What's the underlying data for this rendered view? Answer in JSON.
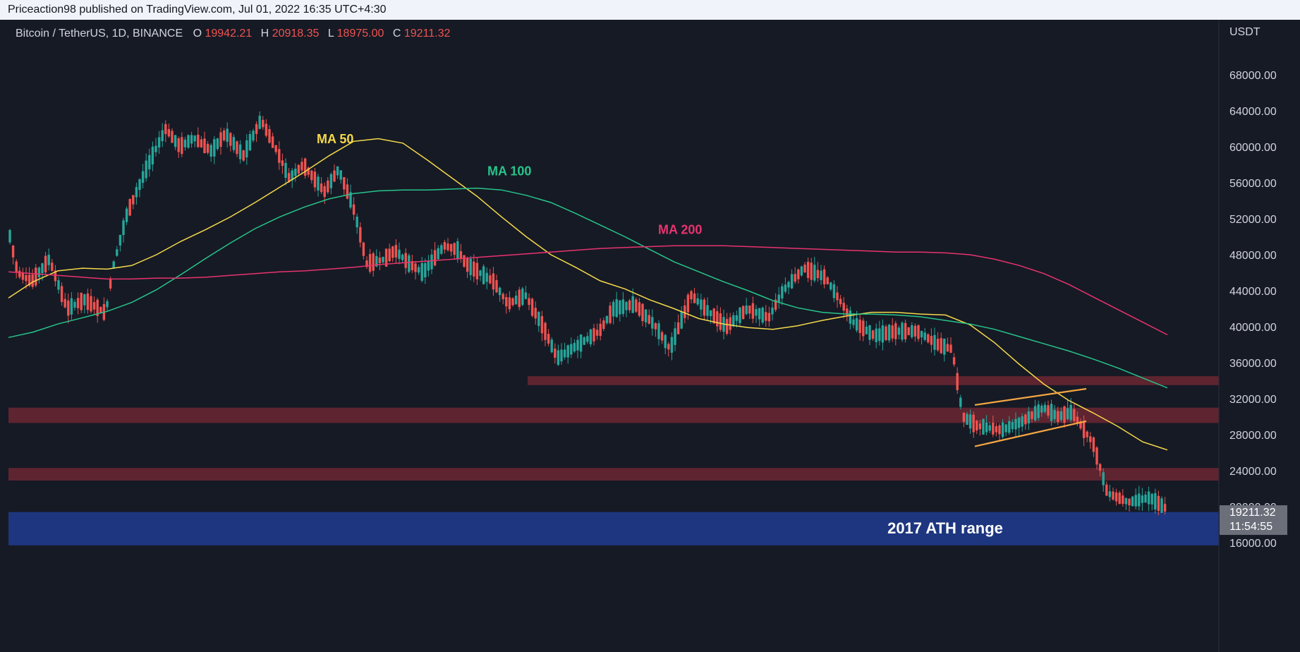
{
  "header": {
    "published": "Priceaction98 published on TradingView.com, Jul 01, 2022 16:35 UTC+4:30"
  },
  "symbol": {
    "name": "Bitcoin / TetherUS, 1D, BINANCE",
    "o_label": "O",
    "o_value": "19942.21",
    "h_label": "H",
    "h_value": "20918.35",
    "l_label": "L",
    "l_value": "18975.00",
    "c_label": "C",
    "c_value": "19211.32"
  },
  "colors": {
    "background": "#161a25",
    "up": "#26a69a",
    "down": "#ef5350",
    "ma50": "#f5d94a",
    "ma100": "#27c48a",
    "ma200": "#e8336e",
    "zone": "#6b2733",
    "ath_zone": "#1e3a8a",
    "channel": "#f5a742"
  },
  "chart_data": {
    "type": "line",
    "y_axis": {
      "unit": "USDT",
      "ticks": [
        16000,
        20000,
        24000,
        28000,
        32000,
        36000,
        40000,
        44000,
        48000,
        52000,
        56000,
        60000,
        64000,
        68000
      ]
    },
    "price_label": {
      "price": "19211.32",
      "countdown": "11:54:55",
      "value": 19211.32
    },
    "series": [
      {
        "name": "MA 50",
        "color_key": "ma50",
        "values": [
          43200,
          45000,
          46200,
          46500,
          46400,
          46800,
          48000,
          49500,
          50800,
          52200,
          53800,
          55500,
          57200,
          59000,
          60600,
          60900,
          60400,
          58500,
          56500,
          54500,
          52200,
          50000,
          48000,
          46600,
          45100,
          44200,
          43000,
          42000,
          40900,
          40300,
          39900,
          39700,
          40100,
          40700,
          41200,
          41600,
          41600,
          41400,
          41300,
          40200,
          38200,
          35800,
          33600,
          31800,
          30400,
          28900,
          27200,
          26300
        ]
      },
      {
        "name": "MA 100",
        "color_key": "ma100",
        "values": [
          38800,
          39400,
          40300,
          41000,
          41700,
          42700,
          44100,
          45800,
          47600,
          49300,
          50900,
          52200,
          53300,
          54200,
          54800,
          55100,
          55200,
          55200,
          55300,
          55400,
          55200,
          54600,
          53800,
          52600,
          51300,
          50000,
          48600,
          47200,
          46100,
          45000,
          44000,
          42900,
          42100,
          41600,
          41400,
          41400,
          41300,
          41100,
          40700,
          40300,
          39700,
          38900,
          38100,
          37300,
          36400,
          35400,
          34300,
          33200
        ]
      },
      {
        "name": "MA 200",
        "color_key": "ma200",
        "values": [
          46100,
          45900,
          45700,
          45500,
          45300,
          45300,
          45400,
          45400,
          45500,
          45700,
          45900,
          46100,
          46200,
          46400,
          46600,
          46900,
          47100,
          47300,
          47500,
          47700,
          47900,
          48100,
          48300,
          48500,
          48700,
          48800,
          48900,
          49000,
          49000,
          49000,
          48900,
          48800,
          48700,
          48600,
          48500,
          48400,
          48300,
          48300,
          48200,
          48000,
          47500,
          46800,
          45900,
          44700,
          43300,
          41900,
          40500,
          39100
        ]
      }
    ],
    "annotations": [
      {
        "text": "MA 50",
        "color_key": "ma50"
      },
      {
        "text": "MA 100",
        "color_key": "ma100"
      },
      {
        "text": "MA 200",
        "color_key": "ma200"
      },
      {
        "text": "2017 ATH range",
        "color_key": "ath_zone"
      }
    ],
    "zones": [
      {
        "low": 33500,
        "high": 34500
      },
      {
        "low": 29300,
        "high": 31000
      },
      {
        "low": 22900,
        "high": 24300
      },
      {
        "low": 15700,
        "high": 19400
      }
    ],
    "channel": {
      "upper": [
        [
          31300,
          33100
        ]
      ],
      "lower": [
        [
          26700,
          29500
        ]
      ]
    }
  }
}
